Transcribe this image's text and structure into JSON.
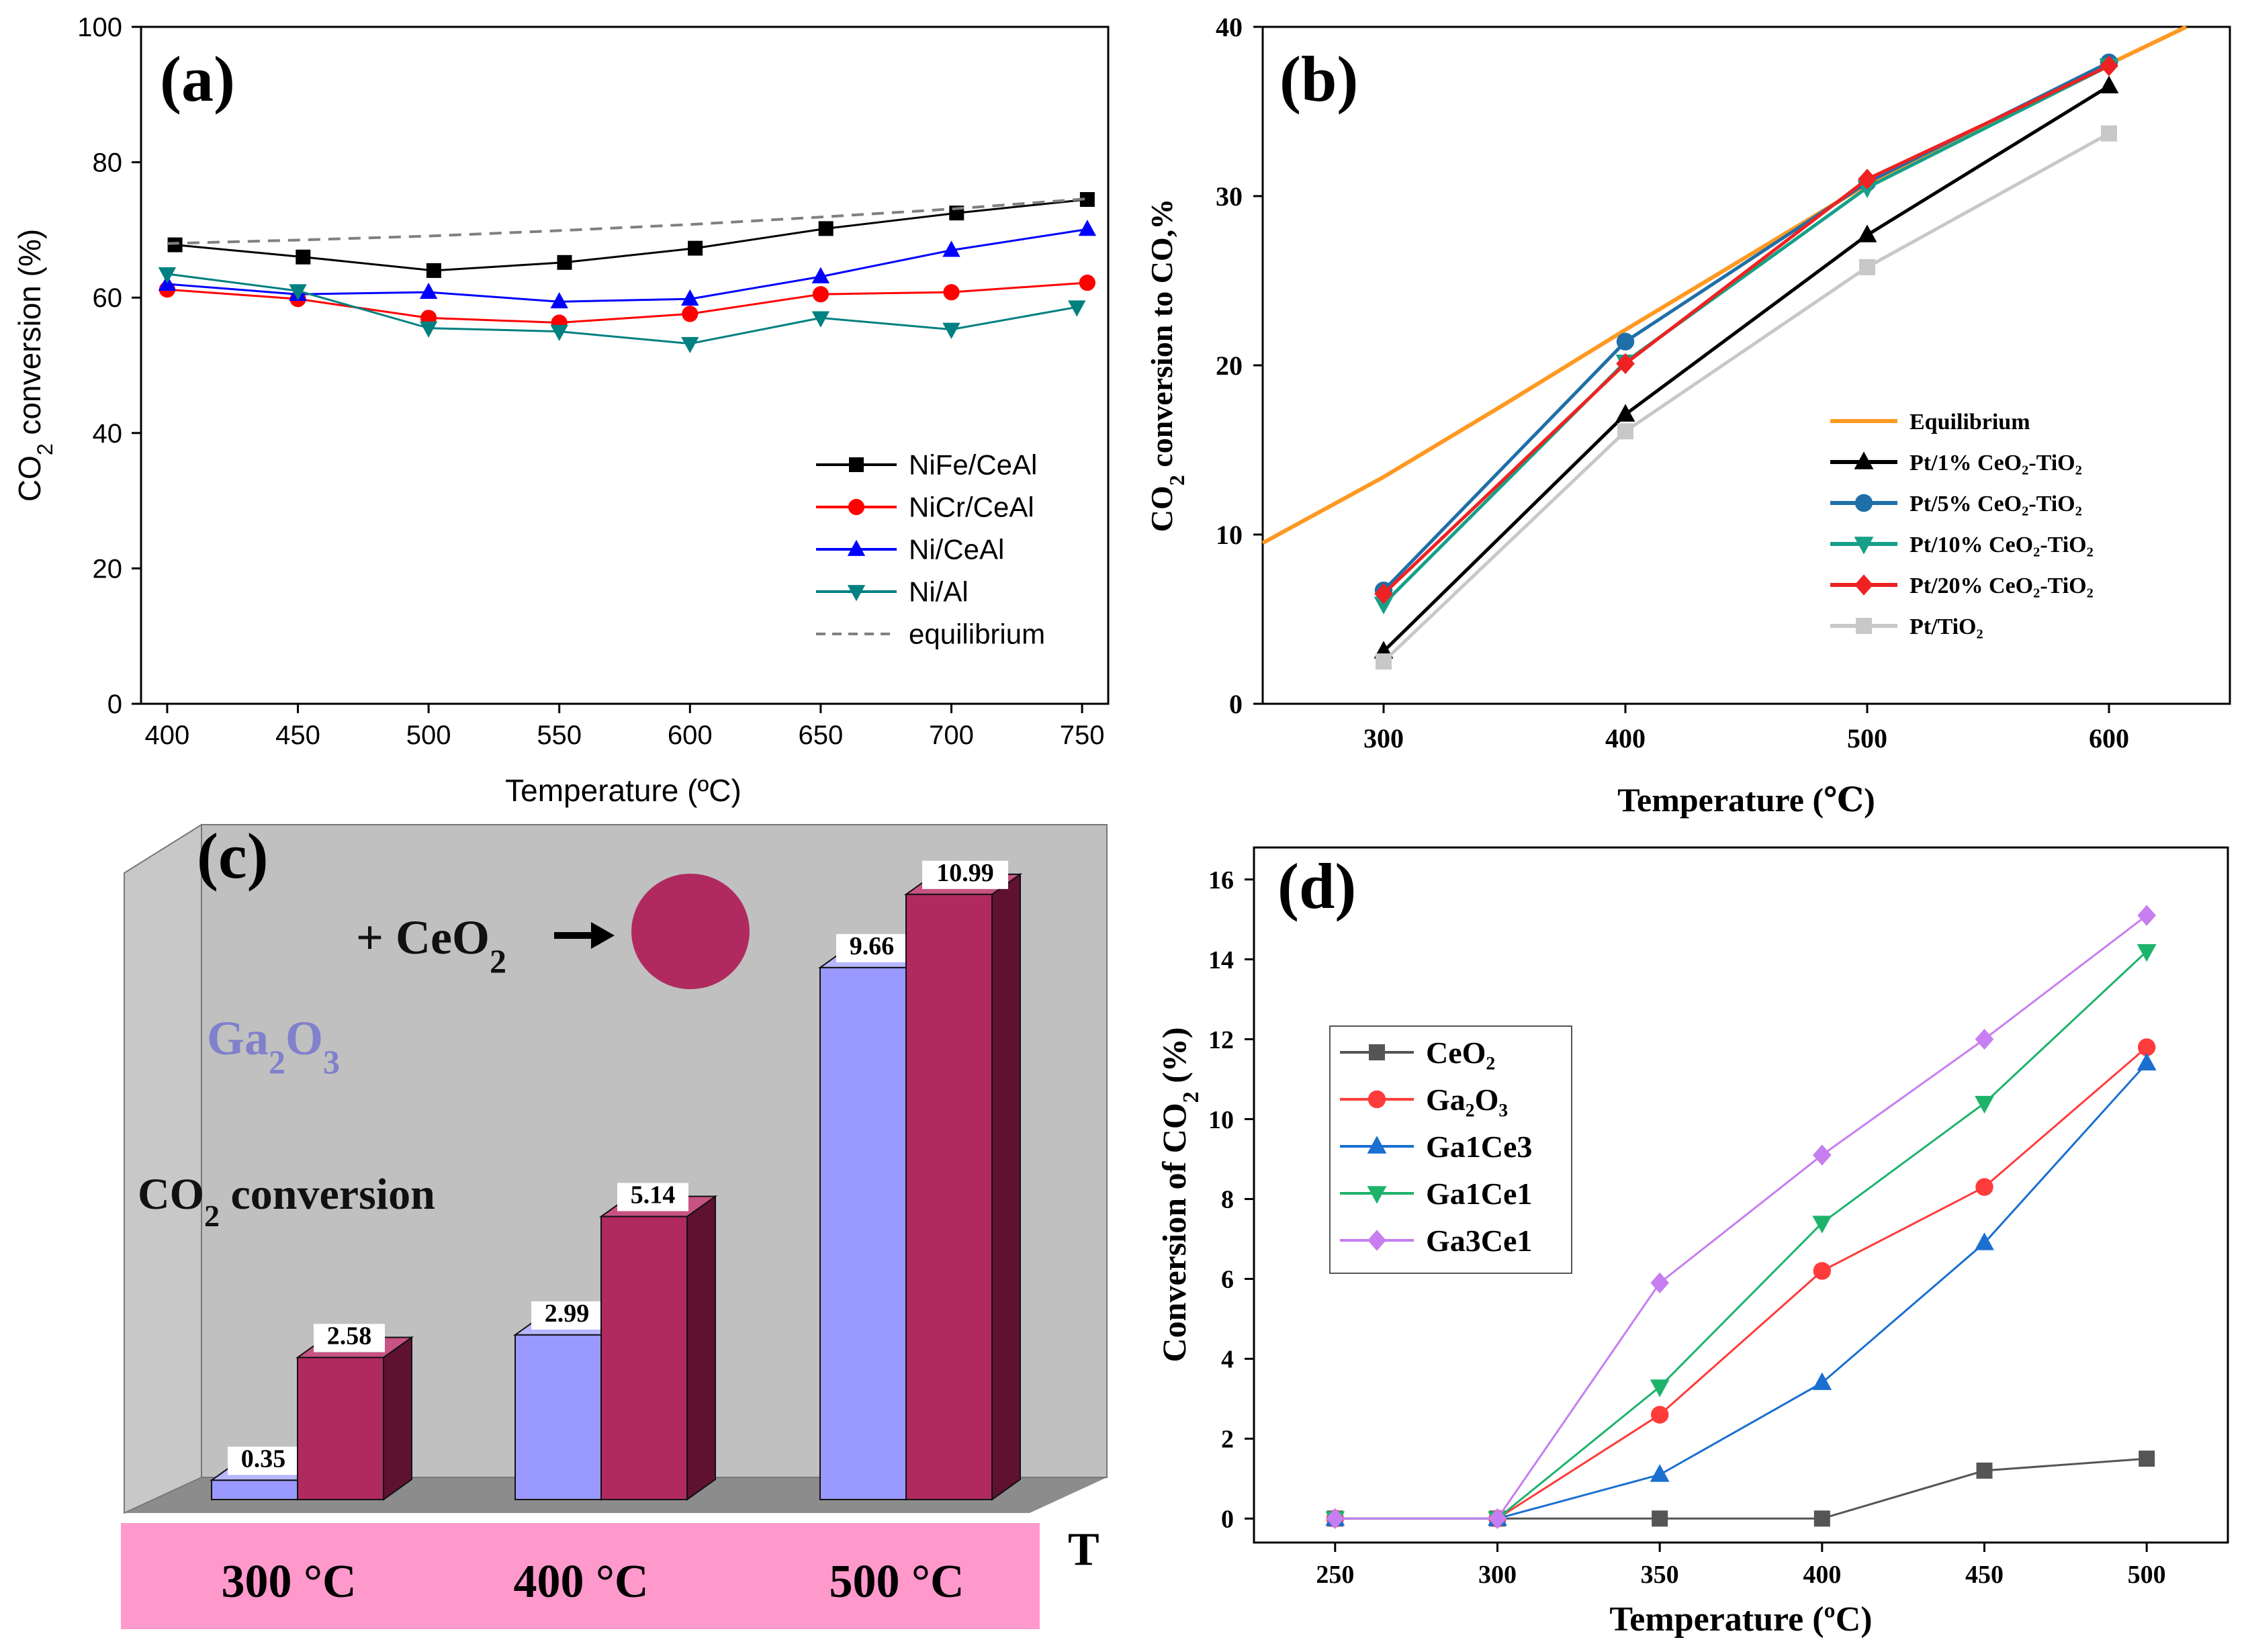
{
  "chart_data": [
    {
      "panel": "(a)",
      "type": "line",
      "xlabel": "Temperature (ºC)",
      "ylabel_main": "CO",
      "ylabel_sub": "2",
      "ylabel_rest": " conversion (%)",
      "xlim": [
        390,
        760
      ],
      "ylim": [
        0,
        100
      ],
      "xticks": [
        400,
        450,
        500,
        550,
        600,
        650,
        700,
        750
      ],
      "yticks": [
        0,
        20,
        40,
        60,
        80,
        100
      ],
      "legend_position": "bottom-right",
      "series": [
        {
          "name": "NiFe/CeAl",
          "color": "#000000",
          "marker": "square",
          "dash": false,
          "x": [
            403,
            452,
            502,
            552,
            602,
            652,
            702,
            752
          ],
          "y": [
            67.8,
            66,
            64,
            65.2,
            67.3,
            70.2,
            72.5,
            74.5
          ]
        },
        {
          "name": "NiCr/CeAl",
          "color": "#ff0000",
          "marker": "circle",
          "dash": false,
          "x": [
            400,
            450,
            500,
            550,
            600,
            650,
            700,
            752
          ],
          "y": [
            61.2,
            59.8,
            57,
            56.3,
            57.6,
            60.5,
            60.8,
            62.2
          ]
        },
        {
          "name": "Ni/CeAl",
          "color": "#0000ff",
          "marker": "triangle-up",
          "dash": false,
          "x": [
            400,
            450,
            500,
            550,
            600,
            650,
            700,
            752
          ],
          "y": [
            62,
            60.5,
            60.8,
            59.4,
            59.8,
            63.1,
            67,
            70.1
          ]
        },
        {
          "name": "Ni/Al",
          "color": "#008080",
          "marker": "triangle-down",
          "dash": false,
          "x": [
            400,
            450,
            500,
            550,
            600,
            650,
            700,
            748
          ],
          "y": [
            63.5,
            61,
            55.5,
            55,
            53.2,
            57,
            55.3,
            58.6
          ]
        },
        {
          "name": "equilibrium",
          "color": "#808080",
          "marker": "none",
          "dash": true,
          "x": [
            400,
            450,
            500,
            550,
            600,
            650,
            700,
            752
          ],
          "y": [
            68,
            68.5,
            69.1,
            69.9,
            70.8,
            71.9,
            73.1,
            74.6
          ]
        }
      ]
    },
    {
      "panel": "(b)",
      "type": "line",
      "xlabel": "Temperature (℃)",
      "ylabel_main": "CO",
      "ylabel_sub": "2",
      "ylabel_rest": " conversion to CO,%",
      "xlim": [
        250,
        650
      ],
      "ylim": [
        0,
        40
      ],
      "xticks": [
        300,
        400,
        500,
        600
      ],
      "yticks": [
        0,
        10,
        20,
        30,
        40
      ],
      "legend_position": "center-right",
      "series": [
        {
          "name": "Equilibrium",
          "color": "#ff9922",
          "marker": "none",
          "x": [
            250,
            300,
            350,
            400,
            450,
            500,
            550,
            600,
            632
          ],
          "y": [
            9.5,
            13.4,
            17.7,
            22.1,
            26.4,
            30.7,
            34.3,
            37.8,
            40
          ]
        },
        {
          "name": "Pt/1% CeO₂-TiO₂",
          "color": "#000000",
          "marker": "triangle-up",
          "x": [
            300,
            400,
            500,
            600
          ],
          "y": [
            3.1,
            17.1,
            27.7,
            36.5
          ]
        },
        {
          "name": "Pt/5% CeO₂-TiO₂",
          "color": "#1f6fa8",
          "marker": "circle",
          "x": [
            300,
            400,
            500,
            600
          ],
          "y": [
            6.7,
            21.4,
            30.8,
            37.9
          ]
        },
        {
          "name": "Pt/10% CeO₂-TiO₂",
          "color": "#16a088",
          "marker": "triangle-down",
          "x": [
            300,
            400,
            500,
            600
          ],
          "y": [
            5.9,
            20.2,
            30.5,
            37.7
          ]
        },
        {
          "name": "Pt/20% CeO₂-TiO₂",
          "color": "#ee2222",
          "marker": "diamond",
          "x": [
            300,
            400,
            500,
            600
          ],
          "y": [
            6.5,
            20.1,
            31,
            37.7
          ]
        },
        {
          "name": "Pt/TiO₂",
          "color": "#c8c8c8",
          "marker": "square",
          "x": [
            300,
            400,
            500,
            600
          ],
          "y": [
            2.5,
            16.1,
            25.8,
            33.7
          ]
        }
      ]
    },
    {
      "panel": "(c)",
      "type": "bar",
      "title_main": "CO",
      "title_sub": "2",
      "title_rest": " conversion",
      "axis_letter": "T",
      "scheme_plus": "+ CeO",
      "scheme_sub": "2",
      "catalyst_main": "Ga",
      "catalyst_sub1": "2",
      "catalyst_mid": "O",
      "catalyst_sub2": "3",
      "categories": [
        "300 °C",
        "400 °C",
        "500 °C"
      ],
      "series": [
        {
          "name": "Ga2O3",
          "color": "#9999ff",
          "values": [
            0.35,
            2.99,
            9.66
          ]
        },
        {
          "name": "Ga2O3 + CeO2",
          "color": "#b02a60",
          "values": [
            2.58,
            5.14,
            10.99
          ]
        }
      ],
      "labels": [
        [
          "0.35",
          "2.58"
        ],
        [
          "2.99",
          "5.14"
        ],
        [
          "9.66",
          "10.99"
        ]
      ],
      "ylim": [
        0,
        12
      ]
    },
    {
      "panel": "(d)",
      "type": "line",
      "xlabel": "Temperature (ºC)",
      "ylabel_main": "Conversion of CO",
      "ylabel_sub": "2",
      "ylabel_rest": " (%)",
      "xlim": [
        225,
        525
      ],
      "ylim": [
        -0.6,
        16.8
      ],
      "xticks": [
        250,
        300,
        350,
        400,
        450,
        500
      ],
      "yticks": [
        0,
        2,
        4,
        6,
        8,
        10,
        12,
        14,
        16
      ],
      "legend_position": "top-left",
      "series": [
        {
          "name": "CeO₂",
          "color": "#555555",
          "marker": "square",
          "x": [
            250,
            300,
            350,
            400,
            450,
            500
          ],
          "y": [
            0,
            0,
            0,
            0,
            1.2,
            1.5
          ]
        },
        {
          "name": "Ga₂O₃",
          "color": "#ff3b3b",
          "marker": "circle",
          "x": [
            250,
            300,
            350,
            400,
            450,
            500
          ],
          "y": [
            0,
            0,
            2.6,
            6.2,
            8.3,
            11.8
          ]
        },
        {
          "name": "Ga1Ce3",
          "color": "#1a6fd0",
          "marker": "triangle-up",
          "x": [
            250,
            300,
            350,
            400,
            450,
            500
          ],
          "y": [
            0,
            0,
            1.1,
            3.4,
            6.9,
            11.4
          ]
        },
        {
          "name": "Ga1Ce1",
          "color": "#1db36b",
          "marker": "triangle-down",
          "x": [
            250,
            300,
            350,
            400,
            450,
            500
          ],
          "y": [
            0,
            0,
            3.3,
            7.4,
            10.4,
            14.2
          ]
        },
        {
          "name": "Ga3Ce1",
          "color": "#c77ef0",
          "marker": "diamond",
          "x": [
            250,
            300,
            350,
            400,
            450,
            500
          ],
          "y": [
            0,
            0,
            5.9,
            9.1,
            12,
            15.1
          ]
        }
      ]
    }
  ]
}
